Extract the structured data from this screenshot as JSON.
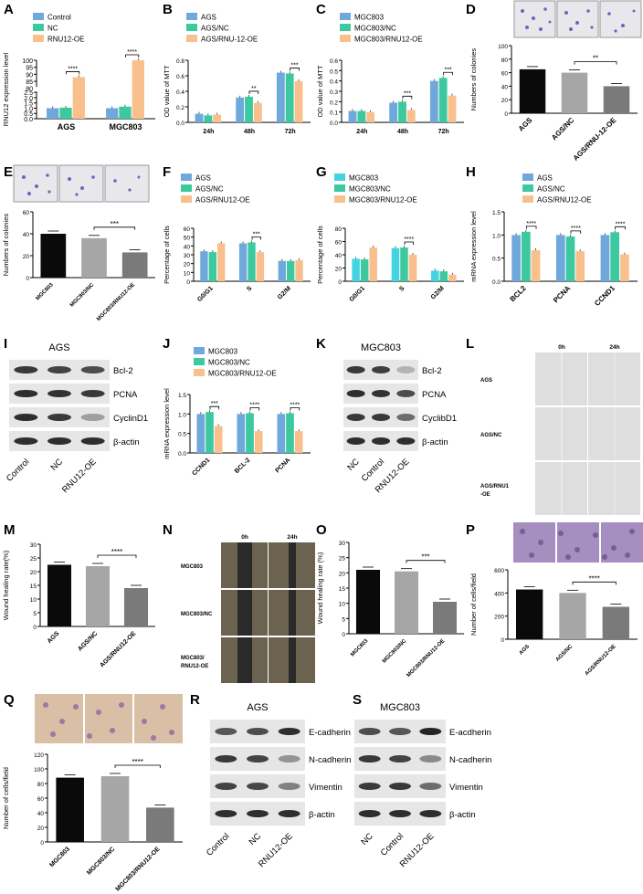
{
  "colors": {
    "blue": "#6fa8dc",
    "green": "#3cc9a0",
    "orange": "#f9c08e",
    "cyan": "#44d4e0",
    "black": "#0a0a0a",
    "grey": "#a6a6a6",
    "darkgrey": "#7a7a7a"
  },
  "panels": {
    "A": {
      "label": "A"
    },
    "B": {
      "label": "B"
    },
    "C": {
      "label": "C"
    },
    "D": {
      "label": "D"
    },
    "E": {
      "label": "E"
    },
    "F": {
      "label": "F"
    },
    "G": {
      "label": "G"
    },
    "H": {
      "label": "H"
    },
    "I": {
      "label": "I"
    },
    "J": {
      "label": "J"
    },
    "K": {
      "label": "K"
    },
    "L": {
      "label": "L"
    },
    "M": {
      "label": "M"
    },
    "N": {
      "label": "N"
    },
    "O": {
      "label": "O"
    },
    "P": {
      "label": "P"
    },
    "Q": {
      "label": "Q"
    },
    "R": {
      "label": "R"
    },
    "S": {
      "label": "S"
    }
  },
  "blots": {
    "I": {
      "title": "AGS",
      "bands": [
        "Bcl-2",
        "PCNA",
        "CyclinD1",
        "β-actin"
      ],
      "lanes": [
        "Control",
        "NC",
        "RNU12-OE"
      ]
    },
    "K": {
      "title": "MGC803",
      "bands": [
        "Bcl-2",
        "PCNA",
        "CyclibD1",
        "β-actin"
      ],
      "lanes": [
        "NC",
        "Control",
        "RNU12-OE"
      ]
    },
    "R": {
      "title": "AGS",
      "bands": [
        "E-cadherin",
        "N-cadherin",
        "Vimentin",
        "β-actin"
      ],
      "lanes": [
        "Control",
        "NC",
        "RNU12-OE"
      ]
    },
    "S": {
      "title": "MGC803",
      "bands": [
        "E-acdherin",
        "N-cadherin",
        "Vimentin",
        "β-actin"
      ],
      "lanes": [
        "NC",
        "Control",
        "RNU12-OE"
      ]
    }
  },
  "wound": {
    "L": {
      "cols": [
        "0h",
        "24h"
      ],
      "rows": [
        "AGS",
        "AGS/NC",
        "AGS/RNU1\n-OE"
      ]
    },
    "N": {
      "cols": [
        "0h",
        "24h"
      ],
      "rows": [
        "MGC803",
        "MGC803/NC",
        "MGC803/\nRNU12-OE"
      ]
    }
  },
  "chart_data": [
    {
      "id": "A",
      "type": "bar",
      "ylabel": "RNU12 expression level",
      "categories": [
        "AGS",
        "MGC803"
      ],
      "series": [
        {
          "name": "Control",
          "values": [
            1.0,
            1.0
          ]
        },
        {
          "name": "NC",
          "values": [
            1.05,
            1.15
          ]
        },
        {
          "name": "RNU12-OE",
          "values": [
            88,
            100
          ]
        }
      ],
      "yticks": [
        "0.0",
        "0.5",
        "1.0",
        "1.5",
        "2.0",
        "2.5",
        "80",
        "85",
        "90",
        "95",
        "100"
      ],
      "axis_break": true,
      "sig": [
        {
          "cat": 0,
          "label": "****"
        },
        {
          "cat": 1,
          "label": "****"
        }
      ]
    },
    {
      "id": "B",
      "type": "bar",
      "ylabel": "OD value of MTT",
      "categories": [
        "24h",
        "48h",
        "72h"
      ],
      "series": [
        {
          "name": "AGS",
          "values": [
            0.11,
            0.32,
            0.64
          ]
        },
        {
          "name": "AGS/NC",
          "values": [
            0.09,
            0.33,
            0.63
          ]
        },
        {
          "name": "AGS/RNU-12-OE",
          "values": [
            0.1,
            0.25,
            0.53
          ]
        }
      ],
      "ylim": [
        0,
        0.8
      ],
      "yticks": [
        "0.0",
        "0.2",
        "0.4",
        "0.6",
        "0.8"
      ],
      "sig": [
        {
          "cat": 1,
          "label": "**"
        },
        {
          "cat": 2,
          "label": "***"
        }
      ]
    },
    {
      "id": "C",
      "type": "bar",
      "ylabel": "OD value of MTT",
      "categories": [
        "24h",
        "48h",
        "72h"
      ],
      "series": [
        {
          "name": "MGC803",
          "values": [
            0.11,
            0.19,
            0.4
          ]
        },
        {
          "name": "MGC803/NC",
          "values": [
            0.11,
            0.2,
            0.43
          ]
        },
        {
          "name": "MGC803/RNU12-OE",
          "values": [
            0.1,
            0.12,
            0.26
          ]
        }
      ],
      "ylim": [
        0,
        0.6
      ],
      "yticks": [
        "0.0",
        "0.1",
        "0.2",
        "0.3",
        "0.4",
        "0.5",
        "0.6"
      ],
      "sig": [
        {
          "cat": 1,
          "label": "***"
        },
        {
          "cat": 2,
          "label": "***"
        }
      ]
    },
    {
      "id": "D",
      "type": "bar",
      "ylabel": "Numbers of colonies",
      "categories": [
        "AGS",
        "AGS/NC",
        "AGS/RNU-12-OE"
      ],
      "values": [
        65,
        60,
        40
      ],
      "ylim": [
        0,
        100
      ],
      "yticks": [
        "0",
        "20",
        "40",
        "60",
        "80",
        "100"
      ],
      "sig": [
        {
          "label": "**"
        }
      ]
    },
    {
      "id": "E",
      "type": "bar",
      "ylabel": "Numbers of colonies",
      "categories": [
        "MGC803",
        "MGC803/NC",
        "MGC803/RNU12-OE"
      ],
      "values": [
        40,
        36,
        23
      ],
      "ylim": [
        0,
        60
      ],
      "yticks": [
        "0",
        "20",
        "40",
        "60"
      ],
      "sig": [
        {
          "label": "***"
        }
      ]
    },
    {
      "id": "F",
      "type": "bar",
      "ylabel": "Percentage of cells",
      "categories": [
        "G0/G1",
        "S",
        "G2/M"
      ],
      "series": [
        {
          "name": "AGS",
          "values": [
            34,
            43,
            23
          ]
        },
        {
          "name": "AGS/NC",
          "values": [
            33,
            44,
            23
          ]
        },
        {
          "name": "AGS/RNU12-OE",
          "values": [
            43,
            33,
            24
          ]
        }
      ],
      "ylim": [
        0,
        60
      ],
      "yticks": [
        "0",
        "10",
        "20",
        "30",
        "40",
        "50",
        "60"
      ],
      "sig": [
        {
          "cat": 1,
          "label": "***"
        }
      ]
    },
    {
      "id": "G",
      "type": "bar",
      "ylabel": "Percentage of cells",
      "categories": [
        "G0/G1",
        "S",
        "G2/M"
      ],
      "series": [
        {
          "name": "MGC803",
          "values": [
            34,
            50,
            16
          ]
        },
        {
          "name": "MGC803/NC",
          "values": [
            33,
            51,
            15
          ]
        },
        {
          "name": "MGC803/RNU12-OE",
          "values": [
            51,
            40,
            10
          ]
        }
      ],
      "ylim": [
        0,
        80
      ],
      "yticks": [
        "0",
        "20",
        "40",
        "60",
        "80"
      ],
      "sig": [
        {
          "cat": 1,
          "label": "****"
        }
      ]
    },
    {
      "id": "H",
      "type": "bar",
      "ylabel": "mRNA expression level",
      "categories": [
        "BCL2",
        "PCNA",
        "CCND1"
      ],
      "series": [
        {
          "name": "AGS",
          "values": [
            1.0,
            1.0,
            1.0
          ]
        },
        {
          "name": "AGS/NC",
          "values": [
            1.07,
            0.97,
            1.06
          ]
        },
        {
          "name": "AGS/RNU12-OE",
          "values": [
            0.67,
            0.65,
            0.58
          ]
        }
      ],
      "ylim": [
        0,
        1.5
      ],
      "yticks": [
        "0.0",
        "0.5",
        "1.0",
        "1.5"
      ],
      "sig": [
        {
          "cat": 0,
          "label": "****"
        },
        {
          "cat": 1,
          "label": "****"
        },
        {
          "cat": 2,
          "label": "****"
        }
      ]
    },
    {
      "id": "J",
      "type": "bar",
      "ylabel": "mRNA expression level",
      "categories": [
        "CCND1",
        "BCL-2",
        "PCNA"
      ],
      "series": [
        {
          "name": "MGC803",
          "values": [
            1.0,
            1.0,
            1.0
          ]
        },
        {
          "name": "MGC803/NC",
          "values": [
            1.05,
            1.02,
            1.02
          ]
        },
        {
          "name": "MGC803/RNU12-OE",
          "values": [
            0.69,
            0.56,
            0.56
          ]
        }
      ],
      "ylim": [
        0,
        1.5
      ],
      "yticks": [
        "0.0",
        "0.5",
        "1.0",
        "1.5"
      ],
      "sig": [
        {
          "cat": 0,
          "label": "***"
        },
        {
          "cat": 1,
          "label": "****"
        },
        {
          "cat": 2,
          "label": "****"
        }
      ]
    },
    {
      "id": "M",
      "type": "bar",
      "ylabel": "Wound healing rate(%)",
      "categories": [
        "AGS",
        "AGS/NC",
        "AGS/RNU12-OE"
      ],
      "values": [
        22.5,
        22,
        14
      ],
      "ylim": [
        0,
        30
      ],
      "yticks": [
        "0",
        "5",
        "10",
        "15",
        "20",
        "25",
        "30"
      ],
      "sig": [
        {
          "label": "****"
        }
      ]
    },
    {
      "id": "O",
      "type": "bar",
      "ylabel": "Wound healing rate (%)",
      "categories": [
        "MGC803",
        "MGC803/NC",
        "MGC803/RNU12-OE"
      ],
      "values": [
        21,
        20.5,
        10.5
      ],
      "ylim": [
        0,
        30
      ],
      "yticks": [
        "0",
        "5",
        "10",
        "15",
        "20",
        "25",
        "30"
      ],
      "sig": [
        {
          "label": "***"
        }
      ]
    },
    {
      "id": "P",
      "type": "bar",
      "ylabel": "Number of cells/field",
      "categories": [
        "AGS",
        "AGS/NC",
        "AGS/RNU12-OE"
      ],
      "values": [
        430,
        400,
        280
      ],
      "ylim": [
        0,
        600
      ],
      "yticks": [
        "0",
        "200",
        "400",
        "600"
      ],
      "sig": [
        {
          "label": "****"
        }
      ]
    },
    {
      "id": "Q",
      "type": "bar",
      "ylabel": "Number of cells/field",
      "categories": [
        "MGC803",
        "MGC803/NC",
        "MGC803/RNU12-OE"
      ],
      "values": [
        88,
        90,
        47
      ],
      "ylim": [
        0,
        120
      ],
      "yticks": [
        "0",
        "20",
        "40",
        "60",
        "80",
        "100",
        "120"
      ],
      "sig": [
        {
          "label": "****"
        }
      ]
    }
  ]
}
